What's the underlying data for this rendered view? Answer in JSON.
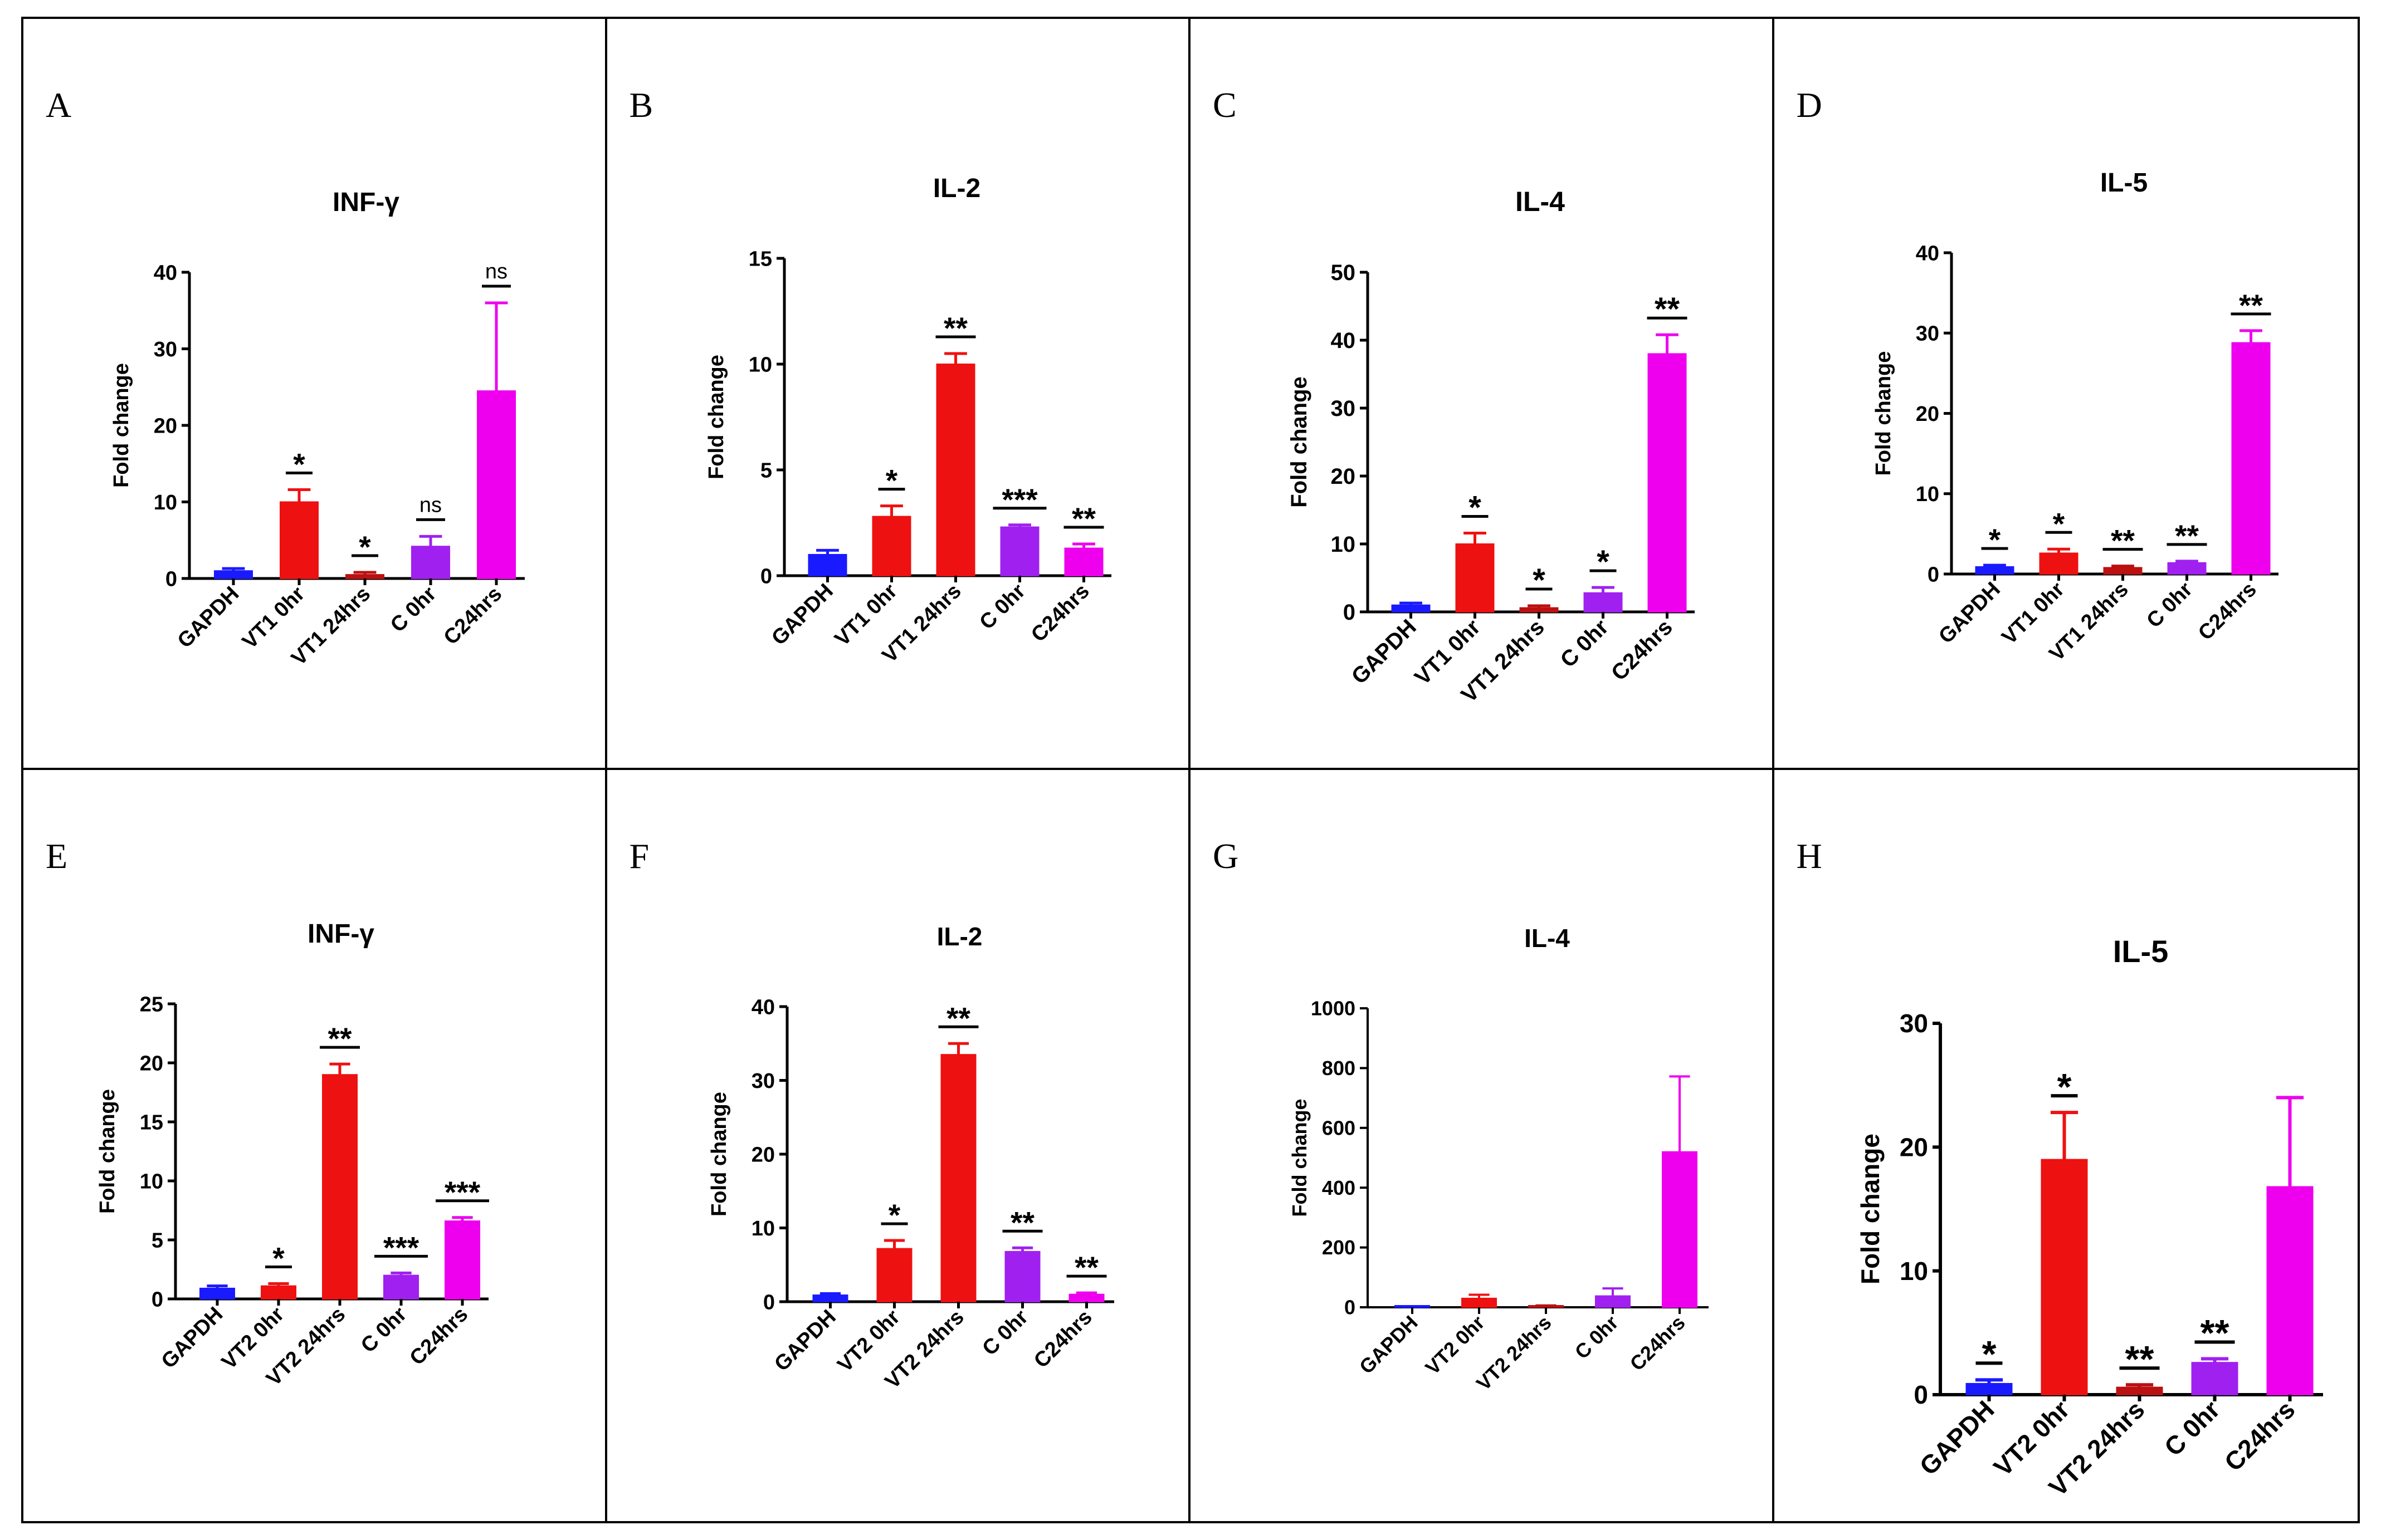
{
  "chart_data": [
    {
      "panel": "A",
      "type": "bar",
      "title": "INF-γ",
      "ylabel": "Fold change",
      "ylim": [
        0,
        40
      ],
      "yticks": [
        0,
        10,
        20,
        30,
        40
      ],
      "categories": [
        "GAPDH",
        "VT1 0hr",
        "VT1 24hrs",
        "C 0hr",
        "C24hrs"
      ],
      "values": [
        1,
        10,
        0.5,
        4.2,
        24.5
      ],
      "errors": [
        0.3,
        1.6,
        0.3,
        1.3,
        11.5
      ],
      "significance": [
        "",
        "*",
        "*",
        "ns",
        "ns"
      ],
      "colors": [
        "#1a1aff",
        "#ee1111",
        "#bb1111",
        "#a020f0",
        "#ee00ee"
      ]
    },
    {
      "panel": "B",
      "type": "bar",
      "title": "IL-2",
      "ylabel": "Fold change",
      "ylim": [
        0,
        15
      ],
      "yticks": [
        0,
        5,
        10,
        15
      ],
      "categories": [
        "GAPDH",
        "VT1 0hr",
        "VT1 24hrs",
        "C 0hr",
        "C24hrs"
      ],
      "values": [
        1,
        2.8,
        10,
        2.3,
        1.3
      ],
      "errors": [
        0.2,
        0.5,
        0.5,
        0.1,
        0.2
      ],
      "significance": [
        "",
        "*",
        "**",
        "***",
        "**"
      ],
      "colors": [
        "#1a1aff",
        "#ee1111",
        "#ee1111",
        "#a020f0",
        "#ee00ee"
      ]
    },
    {
      "panel": "C",
      "type": "bar",
      "title": "IL-4",
      "ylabel": "Fold change",
      "ylim": [
        0,
        50
      ],
      "yticks": [
        0,
        10,
        20,
        30,
        40,
        50
      ],
      "categories": [
        "GAPDH",
        "VT1 0hr",
        "VT1 24hrs",
        "C 0hr",
        "C24hrs"
      ],
      "values": [
        1,
        10,
        0.6,
        2.8,
        38
      ],
      "errors": [
        0.3,
        1.6,
        0.3,
        0.8,
        2.8
      ],
      "significance": [
        "",
        "*",
        "*",
        "*",
        "**"
      ],
      "colors": [
        "#1a1aff",
        "#ee1111",
        "#bb1111",
        "#a020f0",
        "#ee00ee"
      ]
    },
    {
      "panel": "D",
      "type": "bar",
      "title": "IL-5",
      "ylabel": "Fold change",
      "ylim": [
        0,
        40
      ],
      "yticks": [
        0,
        10,
        20,
        30,
        40
      ],
      "categories": [
        "GAPDH",
        "VT1 0hr",
        "VT1 24hrs",
        "C 0hr",
        "C24hrs"
      ],
      "values": [
        0.9,
        2.6,
        0.8,
        1.4,
        28.8
      ],
      "errors": [
        0.2,
        0.5,
        0.2,
        0.2,
        1.5
      ],
      "significance": [
        "*",
        "*",
        "**",
        "**",
        "**"
      ],
      "colors": [
        "#1a1aff",
        "#ee1111",
        "#bb1111",
        "#a020f0",
        "#ee00ee"
      ]
    },
    {
      "panel": "E",
      "type": "bar",
      "title": "INF-γ",
      "ylabel": "Fold change",
      "ylim": [
        0,
        25
      ],
      "yticks": [
        0,
        5,
        10,
        15,
        20,
        25
      ],
      "categories": [
        "GAPDH",
        "VT2 0hr",
        "VT2 24hrs",
        "C 0hr",
        "C24hrs"
      ],
      "values": [
        0.9,
        1.1,
        19,
        2,
        6.6
      ],
      "errors": [
        0.2,
        0.2,
        0.9,
        0.2,
        0.3
      ],
      "significance": [
        "",
        "*",
        "**",
        "***",
        "***"
      ],
      "colors": [
        "#1a1aff",
        "#ee1111",
        "#ee1111",
        "#a020f0",
        "#ee00ee"
      ]
    },
    {
      "panel": "F",
      "type": "bar",
      "title": "IL-2",
      "ylabel": "Fold change",
      "ylim": [
        0,
        40
      ],
      "yticks": [
        0,
        10,
        20,
        30,
        40
      ],
      "categories": [
        "GAPDH",
        "VT2 0hr",
        "VT2 24hrs",
        "C 0hr",
        "C24hrs"
      ],
      "values": [
        0.9,
        7.2,
        33.5,
        6.8,
        1
      ],
      "errors": [
        0.2,
        1.1,
        1.5,
        0.5,
        0.2
      ],
      "significance": [
        "",
        "*",
        "**",
        "**",
        "**"
      ],
      "colors": [
        "#1a1aff",
        "#ee1111",
        "#ee1111",
        "#a020f0",
        "#ee00ee"
      ]
    },
    {
      "panel": "G",
      "type": "bar",
      "title": "IL-4",
      "ylabel": "Fold change",
      "ylim": [
        0,
        1000
      ],
      "yticks": [
        0,
        200,
        400,
        600,
        800,
        1000
      ],
      "categories": [
        "GAPDH",
        "VT2 0hr",
        "VT2 24hrs",
        "C 0hr",
        "C24hrs"
      ],
      "values": [
        1,
        30,
        4,
        38,
        520
      ],
      "errors": [
        0.5,
        12,
        2,
        25,
        252
      ],
      "significance": [
        "",
        "",
        "",
        "",
        ""
      ],
      "colors": [
        "#1a1aff",
        "#ee1111",
        "#bb1111",
        "#a020f0",
        "#ee00ee"
      ]
    },
    {
      "panel": "H",
      "type": "bar",
      "title": "IL-5",
      "ylabel": "Fold change",
      "ylim": [
        0,
        30
      ],
      "yticks": [
        0,
        10,
        20,
        30
      ],
      "categories": [
        "GAPDH",
        "VT2 0hr",
        "VT2 24hrs",
        "C 0hr",
        "C24hrs"
      ],
      "values": [
        0.9,
        19,
        0.6,
        2.6,
        16.8
      ],
      "errors": [
        0.3,
        3.8,
        0.2,
        0.3,
        7.2
      ],
      "significance": [
        "*",
        "*",
        "**",
        "**",
        ""
      ],
      "colors": [
        "#1a1aff",
        "#ee1111",
        "#bb1111",
        "#a020f0",
        "#ee00ee"
      ]
    }
  ]
}
